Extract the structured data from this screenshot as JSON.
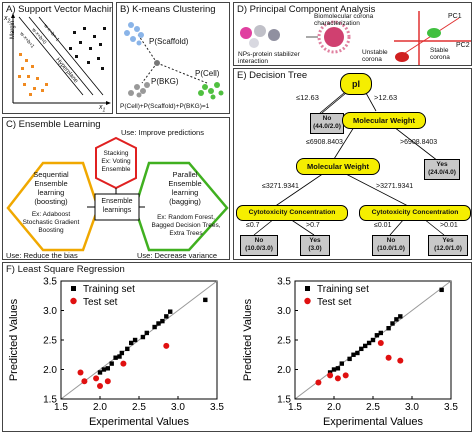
{
  "panels": {
    "a": {
      "title": "A) Support Vector Machines",
      "x1": "x",
      "x1_sub": "1",
      "x2": "x",
      "x2_sub": "2",
      "margin": "Margin",
      "hyperplane": "Hyperplane",
      "eq_top": "w·x+b=1",
      "eq_mid": "w·x+b=0",
      "eq_bot": "w·x+b=-1"
    },
    "b": {
      "title": "B) K-means Clustering",
      "scaffold": "P(Scaffold)",
      "bkg": "P(BKG)",
      "cell": "P(Cell)",
      "formula": "P(Cell)+P(Scaffold)+P(BKG)=1"
    },
    "c": {
      "title": "C) Ensemble Learning",
      "use_top": "Use: Improve predictions",
      "stacking": "Stacking\nEx: Voting\nEnsemble",
      "sequential": "Sequential\nEnsemble\nlearning\n(boosting)",
      "sequential_ex": "Ex: Adaboost\nStochastic Gradient\nBoosting",
      "center": "Ensemble\nlearnings",
      "parallel": "Parallel\nEnsemble\nlearning\n(bagging)",
      "parallel_ex": "Ex: Random Forest,\nBagged Decision Trees,\nExtra Trees",
      "use_left": "Use: Reduce the bias",
      "use_right": "Use: Decrease variance"
    },
    "d": {
      "title": "D) Principal Component Analysis",
      "biomolecular": "Biomolecular corona\ncharacterization",
      "stabilizer": "NPs-protein stabilizer\ninteraction",
      "stable": "Stable\ncorona",
      "unstable": "Unstable\ncorona",
      "pc1": "PC1",
      "pc2": "PC2"
    },
    "e": {
      "title": "E) Decision Tree",
      "root": "pI",
      "root_left": "≤12.63",
      "root_right": ">12.63",
      "leaf1": "No\n(44.0/2.0)",
      "mw1": "Molecular Weight",
      "mw1_left": "≤6908.8403",
      "mw1_right": ">6908.8403",
      "mw2": "Molecular Weight",
      "leaf2": "Yes\n(24.0/4.0)",
      "mw2_left": "≤3271.9341",
      "mw2_right": ">3271.9341",
      "cc1": "Cytotoxicity Concentration",
      "cc2": "Cytotoxicity Concentration",
      "cc1_left": "≤0.7",
      "cc1_right": ">0.7",
      "cc2_left": "≤0.01",
      "cc2_right": ">0.01",
      "leaf3": "No\n(10.0/3.0)",
      "leaf4": "Yes\n(3.0)",
      "leaf5": "No\n(10.0/1.0)",
      "leaf6": "Yes\n(12.0/1.0)"
    },
    "f": {
      "title": "F) Least Square Regression"
    }
  },
  "colors": {
    "node_fill": "#f5ee00",
    "leaf_fill": "#c8c8c8",
    "training": "#000000",
    "test": "#e01010",
    "hex_red": "#e02020",
    "hex_orange": "#f0a800",
    "hex_green": "#40b020"
  },
  "chart_data": [
    {
      "type": "scatter",
      "xlabel": "Experimental Values",
      "ylabel": "Predicted Values",
      "xlim": [
        1.5,
        3.5
      ],
      "ylim": [
        1.5,
        3.5
      ],
      "xticks": [
        "1.5",
        "2.0",
        "2.5",
        "3.0",
        "3.5"
      ],
      "yticks": [
        "1.5",
        "2.0",
        "2.5",
        "3.0",
        "3.5"
      ],
      "legend": [
        "Training set",
        "Test set"
      ],
      "legend_position": "top-left",
      "series": [
        {
          "name": "Training set",
          "points": [
            [
              3.35,
              3.18
            ],
            [
              2.9,
              2.98
            ],
            [
              2.85,
              2.9
            ],
            [
              2.8,
              2.82
            ],
            [
              2.75,
              2.78
            ],
            [
              2.7,
              2.72
            ],
            [
              2.6,
              2.62
            ],
            [
              2.55,
              2.55
            ],
            [
              2.45,
              2.5
            ],
            [
              2.4,
              2.45
            ],
            [
              2.35,
              2.35
            ],
            [
              2.28,
              2.28
            ],
            [
              2.25,
              2.22
            ],
            [
              2.2,
              2.2
            ],
            [
              2.15,
              2.1
            ],
            [
              2.1,
              2.02
            ],
            [
              2.05,
              2.0
            ],
            [
              2.0,
              1.95
            ]
          ]
        },
        {
          "name": "Test set",
          "points": [
            [
              1.75,
              1.95
            ],
            [
              1.8,
              1.8
            ],
            [
              1.95,
              1.85
            ],
            [
              2.0,
              1.72
            ],
            [
              2.1,
              1.8
            ],
            [
              2.85,
              2.4
            ],
            [
              2.3,
              2.1
            ]
          ]
        }
      ]
    },
    {
      "type": "scatter",
      "xlabel": "Experimental Values",
      "ylabel": "Predicted Values",
      "xlim": [
        1.5,
        3.5
      ],
      "ylim": [
        1.5,
        3.5
      ],
      "xticks": [
        "1.5",
        "2.0",
        "2.5",
        "3.0",
        "3.5"
      ],
      "yticks": [
        "1.5",
        "2.0",
        "2.5",
        "3.0",
        "3.5"
      ],
      "legend": [
        "Training set",
        "Test set"
      ],
      "legend_position": "top-left",
      "series": [
        {
          "name": "Training set",
          "points": [
            [
              3.38,
              3.35
            ],
            [
              2.85,
              2.9
            ],
            [
              2.8,
              2.85
            ],
            [
              2.75,
              2.78
            ],
            [
              2.7,
              2.7
            ],
            [
              2.6,
              2.62
            ],
            [
              2.55,
              2.58
            ],
            [
              2.5,
              2.5
            ],
            [
              2.45,
              2.45
            ],
            [
              2.4,
              2.4
            ],
            [
              2.35,
              2.35
            ],
            [
              2.3,
              2.28
            ],
            [
              2.25,
              2.25
            ],
            [
              2.2,
              2.18
            ],
            [
              2.1,
              2.1
            ],
            [
              2.05,
              2.02
            ],
            [
              2.0,
              2.0
            ],
            [
              1.95,
              1.95
            ]
          ]
        },
        {
          "name": "Test set",
          "points": [
            [
              1.8,
              1.78
            ],
            [
              1.95,
              1.9
            ],
            [
              2.05,
              1.85
            ],
            [
              2.15,
              1.9
            ],
            [
              2.7,
              2.2
            ],
            [
              2.85,
              2.15
            ],
            [
              2.6,
              2.45
            ]
          ]
        }
      ]
    }
  ]
}
